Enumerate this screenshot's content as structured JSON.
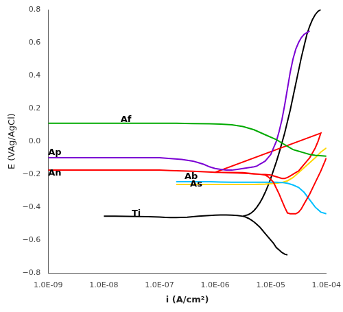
{
  "chart_data": {
    "type": "line",
    "xlabel": "i (A/cm²)",
    "ylabel": "E (VAg/AgCl)",
    "log": "x",
    "grid": false,
    "xlim": [
      1e-09,
      0.0001
    ],
    "ylim": [
      -0.8,
      0.8
    ],
    "xticks": [
      {
        "value": 1e-09,
        "label": "1.0E-09"
      },
      {
        "value": 1e-08,
        "label": "1.0E-08"
      },
      {
        "value": 1e-07,
        "label": "1.0E-07"
      },
      {
        "value": 1e-06,
        "label": "1.0E-06"
      },
      {
        "value": 1e-05,
        "label": "1.0E-05"
      },
      {
        "value": 0.0001,
        "label": "1.0E-04"
      }
    ],
    "yticks": [
      {
        "value": -0.8,
        "label": "−0.8"
      },
      {
        "value": -0.6,
        "label": "−0.6"
      },
      {
        "value": -0.4,
        "label": "−0.4"
      },
      {
        "value": -0.2,
        "label": "−0.2"
      },
      {
        "value": 0.0,
        "label": "0.0"
      },
      {
        "value": 0.2,
        "label": "0.2"
      },
      {
        "value": 0.4,
        "label": "0.4"
      },
      {
        "value": 0.6,
        "label": "0.6"
      },
      {
        "value": 0.8,
        "label": "0.8"
      }
    ],
    "series": [
      {
        "color": "#00aa00",
        "x": [
          1e-09,
          3.16228e-09,
          1e-08,
          3.16228e-08,
          1e-07,
          1.99526e-07,
          3.98107e-07,
          7.94328e-07,
          1.25893e-06,
          1.99526e-06,
          3.16228e-06,
          5.01187e-06,
          7.94328e-06,
          1.25893e-05,
          1.58489e-05,
          1.99526e-05,
          2.51189e-05,
          3.16228e-05,
          3.98107e-05,
          5.01187e-05,
          6.30957e-05,
          0.0001
        ],
        "values": [
          0.11,
          0.11,
          0.11,
          0.11,
          0.11,
          0.11,
          0.108,
          0.107,
          0.105,
          0.1,
          0.09,
          0.07,
          0.04,
          0.01,
          -0.01,
          -0.03,
          -0.05,
          -0.06,
          -0.07,
          -0.08,
          -0.085,
          -0.09
        ]
      },
      {
        "color": "#7B00D4",
        "x": [
          1e-09,
          3.16228e-09,
          1e-08,
          3.16228e-08,
          6.30957e-08,
          1e-07,
          1.58489e-07,
          2.51189e-07,
          3.16228e-07,
          3.98107e-07,
          5.01187e-07,
          6.30957e-07,
          7.94328e-07,
          1e-06,
          1.25893e-06,
          1.58489e-06,
          1.99526e-06,
          2.51189e-06,
          3.16228e-06,
          3.98107e-06,
          5.01187e-06,
          5.62341e-06,
          6.30957e-06,
          7.07946e-06,
          7.94328e-06,
          8.91251e-06,
          1e-05,
          1.12202e-05,
          1.25893e-05,
          1.41254e-05,
          1.58489e-05,
          1.77828e-05,
          1.99526e-05,
          2.23872e-05,
          2.51189e-05,
          2.81838e-05,
          3.16228e-05,
          3.54813e-05,
          3.98107e-05,
          5.01187e-05
        ],
        "values": [
          -0.1,
          -0.1,
          -0.1,
          -0.1,
          -0.1,
          -0.1,
          -0.105,
          -0.11,
          -0.115,
          -0.12,
          -0.13,
          -0.14,
          -0.155,
          -0.165,
          -0.17,
          -0.175,
          -0.175,
          -0.17,
          -0.165,
          -0.16,
          -0.155,
          -0.15,
          -0.14,
          -0.13,
          -0.12,
          -0.1,
          -0.08,
          -0.04,
          0.0,
          0.06,
          0.13,
          0.22,
          0.32,
          0.42,
          0.5,
          0.56,
          0.6,
          0.63,
          0.65,
          0.67
        ]
      },
      {
        "color": "#FF0000",
        "x": [
          1e-09,
          3.16228e-09,
          1e-08,
          3.16228e-08,
          6.30957e-08,
          1e-07,
          1.58489e-07,
          2.51189e-07,
          3.98107e-07,
          6.30957e-07,
          1e-06,
          1.58489e-06,
          2.51189e-06,
          3.98107e-06,
          5.01187e-06,
          6.30957e-06,
          7.94328e-06,
          1e-05,
          1.12202e-05,
          1.25893e-05,
          1.41254e-05,
          1.58489e-05,
          1.77828e-05,
          1.99526e-05,
          2.23872e-05,
          2.51189e-05,
          2.81838e-05,
          3.16228e-05,
          3.54813e-05,
          3.98107e-05,
          4.46684e-05,
          5.01187e-05,
          5.62341e-05,
          6.30957e-05,
          7.07946e-05,
          7.94328e-05,
          1e-06,
          3.16228e-06,
          6.30957e-06,
          7.94328e-06,
          8.91251e-06,
          1e-05,
          1.12202e-05,
          1.25893e-05,
          1.41254e-05,
          1.58489e-05,
          1.77828e-05,
          1.99526e-05,
          2.23872e-05,
          2.51189e-05,
          2.81838e-05,
          3.16228e-05,
          3.54813e-05,
          3.98107e-05,
          5.01187e-05,
          6.30957e-05,
          7.94328e-05,
          0.0001
        ],
        "values": [
          -0.175,
          -0.175,
          -0.175,
          -0.175,
          -0.175,
          -0.175,
          -0.178,
          -0.18,
          -0.182,
          -0.185,
          -0.188,
          -0.19,
          -0.192,
          -0.195,
          -0.198,
          -0.2,
          -0.202,
          -0.205,
          -0.21,
          -0.215,
          -0.22,
          -0.225,
          -0.225,
          -0.22,
          -0.21,
          -0.2,
          -0.19,
          -0.18,
          -0.16,
          -0.14,
          -0.12,
          -0.1,
          -0.07,
          -0.04,
          0.0,
          0.05,
          -0.188,
          -0.19,
          -0.2,
          -0.205,
          -0.215,
          -0.23,
          -0.25,
          -0.285,
          -0.32,
          -0.36,
          -0.4,
          -0.435,
          -0.44,
          -0.44,
          -0.44,
          -0.43,
          -0.41,
          -0.38,
          -0.32,
          -0.25,
          -0.18,
          -0.1
        ]
      },
      {
        "color": "#00BFFF",
        "x": [
          1.99526e-07,
          3.16228e-07,
          5.01187e-07,
          7.94328e-07,
          1.25893e-06,
          1.99526e-06,
          3.16228e-06,
          5.01187e-06,
          7.94328e-06,
          1.25893e-05,
          1.58489e-05,
          1.99526e-05,
          2.51189e-05,
          3.16228e-05,
          3.98107e-05,
          5.01187e-05,
          6.30957e-05,
          7.94328e-05,
          0.0001
        ],
        "values": [
          -0.245,
          -0.245,
          -0.245,
          -0.245,
          -0.247,
          -0.248,
          -0.248,
          -0.248,
          -0.248,
          -0.248,
          -0.25,
          -0.255,
          -0.265,
          -0.28,
          -0.31,
          -0.355,
          -0.4,
          -0.43,
          -0.44
        ]
      },
      {
        "color": "#FFD700",
        "x": [
          1.99526e-07,
          3.16228e-07,
          5.01187e-07,
          7.94328e-07,
          1.25893e-06,
          1.99526e-06,
          3.16228e-06,
          5.01187e-06,
          7.94328e-06,
          1.25893e-05,
          1.58489e-05,
          1.99526e-05,
          2.51189e-05,
          3.16228e-05,
          3.98107e-05,
          5.01187e-05,
          6.30957e-05,
          7.94328e-05,
          0.0001
        ],
        "values": [
          -0.262,
          -0.262,
          -0.262,
          -0.262,
          -0.262,
          -0.262,
          -0.262,
          -0.262,
          -0.26,
          -0.255,
          -0.25,
          -0.24,
          -0.22,
          -0.19,
          -0.16,
          -0.13,
          -0.1,
          -0.065,
          -0.04
        ]
      },
      {
        "color": "#000000",
        "x": [
          1e-08,
          1.58489e-08,
          2.51189e-08,
          3.98107e-08,
          6.30957e-08,
          1e-07,
          1.25893e-07,
          1.58489e-07,
          1.99526e-07,
          2.51189e-07,
          3.16228e-07,
          3.98107e-07,
          5.01187e-07,
          6.30957e-07,
          7.94328e-07,
          1e-06,
          1.25893e-06,
          1.58489e-06,
          1.99526e-06,
          2.51189e-06,
          3.16228e-06,
          3.54813e-06,
          3.98107e-06,
          4.46684e-06,
          5.01187e-06,
          5.62341e-06,
          6.30957e-06,
          7.07946e-06,
          7.94328e-06,
          8.91251e-06,
          1e-05,
          1.12202e-05,
          1.25893e-05,
          1.41254e-05,
          1.58489e-05,
          1.77828e-05,
          1.99526e-05
        ],
        "values": [
          -0.455,
          -0.455,
          -0.456,
          -0.457,
          -0.458,
          -0.46,
          -0.462,
          -0.463,
          -0.463,
          -0.462,
          -0.461,
          -0.458,
          -0.455,
          -0.452,
          -0.45,
          -0.448,
          -0.447,
          -0.447,
          -0.448,
          -0.45,
          -0.455,
          -0.46,
          -0.468,
          -0.478,
          -0.49,
          -0.505,
          -0.52,
          -0.54,
          -0.56,
          -0.58,
          -0.6,
          -0.62,
          -0.645,
          -0.66,
          -0.675,
          -0.685,
          -0.69
        ]
      },
      {
        "color": "#000000",
        "x": [
          3.16228e-06,
          3.54813e-06,
          3.98107e-06,
          4.46684e-06,
          5.01187e-06,
          5.62341e-06,
          6.30957e-06,
          7.07946e-06,
          7.94328e-06,
          8.91251e-06,
          1e-05,
          1.12202e-05,
          1.25893e-05,
          1.41254e-05,
          1.58489e-05,
          1.77828e-05,
          1.99526e-05,
          2.23872e-05,
          2.51189e-05,
          2.81838e-05,
          3.16228e-05,
          3.54813e-05,
          3.98107e-05,
          4.46684e-05,
          5.01187e-05,
          5.62341e-05,
          6.30957e-05,
          7.07946e-05,
          7.94328e-05
        ],
        "values": [
          -0.455,
          -0.45,
          -0.445,
          -0.435,
          -0.42,
          -0.4,
          -0.375,
          -0.345,
          -0.31,
          -0.27,
          -0.225,
          -0.175,
          -0.125,
          -0.07,
          -0.01,
          0.05,
          0.12,
          0.19,
          0.27,
          0.35,
          0.43,
          0.51,
          0.58,
          0.65,
          0.7,
          0.74,
          0.77,
          0.79,
          0.8
        ]
      }
    ],
    "annotations": [
      {
        "text": "Af",
        "x": 1.99526e-08,
        "y": 0.13
      },
      {
        "text": "Ap",
        "x": 1e-09,
        "y": -0.07
      },
      {
        "text": "An",
        "x": 1e-09,
        "y": -0.195
      },
      {
        "text": "Ab",
        "x": 2.81838e-07,
        "y": -0.215
      },
      {
        "text": "As",
        "x": 3.54813e-07,
        "y": -0.26
      },
      {
        "text": "Ti",
        "x": 3.16228e-08,
        "y": -0.44
      }
    ]
  }
}
